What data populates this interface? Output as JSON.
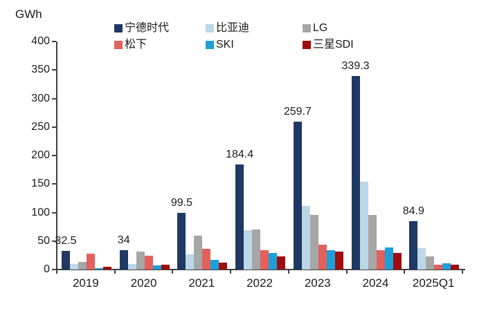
{
  "chart_data": {
    "type": "bar",
    "title": "",
    "ylabel": "GWh",
    "xlabel": "",
    "ylim": [
      0,
      400
    ],
    "yticks": [
      0,
      50,
      100,
      150,
      200,
      250,
      300,
      350,
      400
    ],
    "grid": false,
    "legend_position": "top",
    "categories": [
      "2019",
      "2020",
      "2021",
      "2022",
      "2023",
      "2024",
      "2025Q1"
    ],
    "series": [
      {
        "name": "宁德时代",
        "color": "#1f3864",
        "values": [
          32.5,
          34,
          99.5,
          184.4,
          259.7,
          339.3,
          84.9
        ]
      },
      {
        "name": "比亚迪",
        "color": "#bdd7e7",
        "values": [
          10,
          9.5,
          26.5,
          69.5,
          111,
          154,
          37
        ]
      },
      {
        "name": "LG",
        "color": "#a6a6a6",
        "values": [
          13,
          31,
          59,
          70.5,
          95.5,
          96,
          23.5
        ]
      },
      {
        "name": "松下",
        "color": "#e2615c",
        "values": [
          27.5,
          24,
          36.5,
          34.5,
          44,
          34.5,
          8
        ]
      },
      {
        "name": "SKI",
        "color": "#1d9fd9",
        "values": [
          2,
          7,
          16.5,
          29,
          33.5,
          38.5,
          11.5
        ]
      },
      {
        "name": "三星SDI",
        "color": "#a00c0c",
        "values": [
          4.5,
          8,
          12.5,
          23,
          31.5,
          29.5,
          8
        ]
      }
    ],
    "value_labels": {
      "series_index": 0,
      "labels": [
        "32.5",
        "34",
        "99.5",
        "184.4",
        "259.7",
        "339.3",
        "84.9"
      ]
    },
    "axis_color": "#404040",
    "text_color": "#1a1a1a"
  }
}
